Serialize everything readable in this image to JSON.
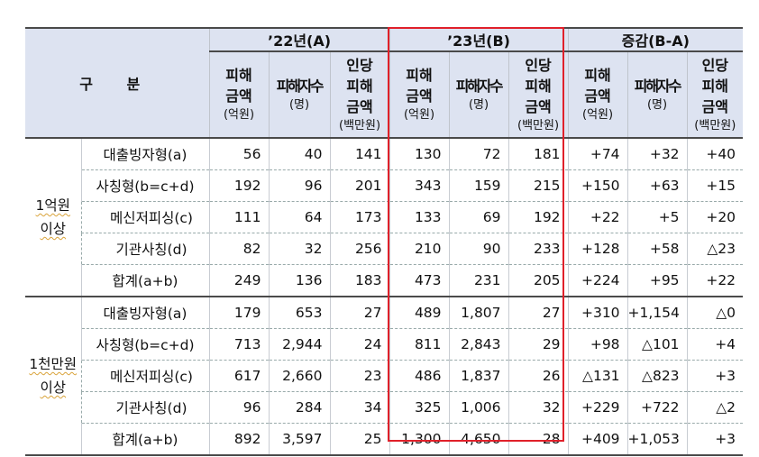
{
  "header": {
    "gubun": "구 분",
    "groups": [
      "’22년(A)",
      "’23년(B)",
      "증감(B-A)"
    ],
    "cols": {
      "amount_top": "피해",
      "amount_mid": "금액",
      "amount_unit": "(억원)",
      "count_top": "피해자수",
      "count_unit": "(명)",
      "per_top": "인당",
      "per_mid1": "피해",
      "per_mid2": "금액",
      "per_unit": "(백만원)"
    }
  },
  "sections": [
    {
      "label_line1": "1억원",
      "label_line2": "이상",
      "rows": [
        {
          "label": "대출빙자형(a)",
          "v": [
            "56",
            "40",
            "141",
            "130",
            "72",
            "181",
            "+74",
            "+32",
            "+40"
          ]
        },
        {
          "label": "사칭형(b=c+d)",
          "v": [
            "192",
            "96",
            "201",
            "343",
            "159",
            "215",
            "+150",
            "+63",
            "+15"
          ]
        },
        {
          "label": "메신저피싱(c)",
          "v": [
            "111",
            "64",
            "173",
            "133",
            "69",
            "192",
            "+22",
            "+5",
            "+20"
          ]
        },
        {
          "label": "기관사칭(d)",
          "v": [
            "82",
            "32",
            "256",
            "210",
            "90",
            "233",
            "+128",
            "+58",
            "△23"
          ]
        },
        {
          "label": "합계(a+b)",
          "v": [
            "249",
            "136",
            "183",
            "473",
            "231",
            "205",
            "+224",
            "+95",
            "+22"
          ]
        }
      ]
    },
    {
      "label_line1": "1천만원",
      "label_line2": "이상",
      "rows": [
        {
          "label": "대출빙자형(a)",
          "v": [
            "179",
            "653",
            "27",
            "489",
            "1,807",
            "27",
            "+310",
            "+1,154",
            "△0"
          ]
        },
        {
          "label": "사칭형(b=c+d)",
          "v": [
            "713",
            "2,944",
            "24",
            "811",
            "2,843",
            "29",
            "+98",
            "△101",
            "+4"
          ]
        },
        {
          "label": "메신저피싱(c)",
          "v": [
            "617",
            "2,660",
            "23",
            "486",
            "1,837",
            "26",
            "△131",
            "△823",
            "+3"
          ]
        },
        {
          "label": "기관사칭(d)",
          "v": [
            "96",
            "284",
            "34",
            "325",
            "1,006",
            "32",
            "+229",
            "+722",
            "△2"
          ]
        },
        {
          "label": "합계(a+b)",
          "v": [
            "892",
            "3,597",
            "25",
            "1,300",
            "4,650",
            "28",
            "+409",
            "+1,053",
            "+3"
          ]
        }
      ]
    }
  ],
  "colors": {
    "header_bg": "#dde3f1",
    "highlight_border": "#e0202a"
  }
}
